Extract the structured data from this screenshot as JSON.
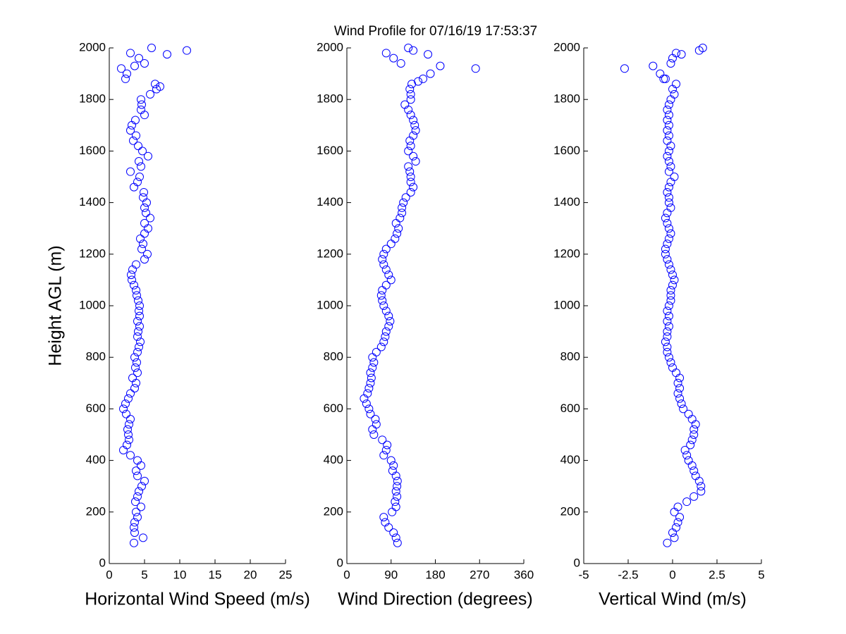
{
  "chart_data": [
    {
      "type": "scatter",
      "title": "Wind Profile for  07/16/19 17:53:37",
      "xlabel": "Horizontal Wind Speed (m/s)",
      "ylabel": "Height AGL (m)",
      "color": "#0000ff",
      "xlim": [
        0,
        25
      ],
      "xticks": [
        0,
        5,
        10,
        15,
        20,
        25
      ],
      "ylim": [
        0,
        2000
      ],
      "yticks": [
        0,
        200,
        400,
        600,
        800,
        1000,
        1200,
        1400,
        1600,
        1800,
        2000
      ],
      "x": [
        3.5,
        4.8,
        3.6,
        3.5,
        3.6,
        4.0,
        3.8,
        4.5,
        3.7,
        4.0,
        4.2,
        4.6,
        5.0,
        4.0,
        3.8,
        4.5,
        4.0,
        3.0,
        2.0,
        2.5,
        2.8,
        2.7,
        2.6,
        2.8,
        3.0,
        2.4,
        2.0,
        2.3,
        2.7,
        3.0,
        3.6,
        3.8,
        3.3,
        4.0,
        3.7,
        3.9,
        3.6,
        4.0,
        4.2,
        4.4,
        4.0,
        4.1,
        4.3,
        4.0,
        4.3,
        4.2,
        4.3,
        4.1,
        3.9,
        3.8,
        3.5,
        3.2,
        3.1,
        3.3,
        3.8,
        5.0,
        5.4,
        4.6,
        4.8,
        4.4,
        5.0,
        5.5,
        5.0,
        5.8,
        5.2,
        5.0,
        5.3,
        4.8,
        4.9,
        3.5,
        4.0,
        4.3,
        3.0,
        4.5,
        4.2,
        5.5,
        4.7,
        4.1,
        3.4,
        3.8,
        3.0,
        3.2,
        3.7,
        5.0,
        4.5,
        4.6,
        4.5,
        5.8,
        6.7,
        6.5,
        2.3,
        2.5,
        1.7,
        5.0,
        4.2,
        3.0,
        6.0,
        11.0,
        8.2,
        7.2,
        3.6
      ],
      "y": [
        80,
        100,
        120,
        140,
        160,
        180,
        200,
        220,
        240,
        260,
        280,
        300,
        320,
        340,
        360,
        380,
        400,
        420,
        440,
        460,
        480,
        500,
        520,
        540,
        560,
        580,
        600,
        620,
        640,
        660,
        680,
        700,
        720,
        740,
        760,
        780,
        800,
        820,
        840,
        860,
        880,
        900,
        920,
        940,
        960,
        980,
        1000,
        1020,
        1040,
        1060,
        1080,
        1100,
        1120,
        1140,
        1160,
        1180,
        1200,
        1220,
        1240,
        1260,
        1280,
        1300,
        1320,
        1340,
        1360,
        1380,
        1400,
        1420,
        1440,
        1460,
        1480,
        1500,
        1520,
        1540,
        1560,
        1580,
        1600,
        1620,
        1640,
        1660,
        1680,
        1700,
        1720,
        1740,
        1760,
        1780,
        1800,
        1820,
        1840,
        1860,
        1880,
        1900,
        1920,
        1940,
        1960,
        1980,
        2000,
        1990,
        1975,
        1850,
        1930
      ]
    },
    {
      "type": "scatter",
      "xlabel": "Wind Direction (degrees)",
      "color": "#0000ff",
      "xlim": [
        0,
        360
      ],
      "xticks": [
        0,
        90,
        180,
        270,
        360
      ],
      "ylim": [
        0,
        2000
      ],
      "yticks": [
        0,
        200,
        400,
        600,
        800,
        1000,
        1200,
        1400,
        1600,
        1800,
        2000
      ],
      "x": [
        103,
        100,
        95,
        85,
        78,
        75,
        92,
        100,
        98,
        102,
        100,
        102,
        103,
        100,
        93,
        95,
        90,
        75,
        80,
        82,
        72,
        55,
        52,
        60,
        58,
        48,
        45,
        40,
        35,
        42,
        45,
        48,
        50,
        48,
        52,
        55,
        52,
        60,
        70,
        75,
        78,
        80,
        85,
        88,
        85,
        80,
        75,
        72,
        70,
        72,
        80,
        90,
        85,
        80,
        75,
        72,
        75,
        80,
        90,
        98,
        102,
        105,
        100,
        108,
        112,
        112,
        115,
        120,
        130,
        135,
        130,
        130,
        128,
        125,
        140,
        135,
        125,
        130,
        128,
        135,
        140,
        138,
        135,
        130,
        125,
        118,
        130,
        130,
        128,
        132,
        155,
        170,
        262,
        110,
        95,
        80,
        125,
        165,
        135,
        190,
        145
      ],
      "y": [
        80,
        100,
        120,
        140,
        160,
        180,
        200,
        220,
        240,
        260,
        280,
        300,
        320,
        340,
        360,
        380,
        400,
        420,
        440,
        460,
        480,
        500,
        520,
        540,
        560,
        580,
        600,
        620,
        640,
        660,
        680,
        700,
        720,
        740,
        760,
        780,
        800,
        820,
        840,
        860,
        880,
        900,
        920,
        940,
        960,
        980,
        1000,
        1020,
        1040,
        1060,
        1080,
        1100,
        1120,
        1140,
        1160,
        1180,
        1200,
        1220,
        1240,
        1260,
        1280,
        1300,
        1320,
        1340,
        1360,
        1380,
        1400,
        1420,
        1440,
        1460,
        1480,
        1500,
        1520,
        1540,
        1560,
        1580,
        1600,
        1620,
        1640,
        1660,
        1680,
        1700,
        1720,
        1740,
        1760,
        1780,
        1800,
        1820,
        1840,
        1860,
        1880,
        1900,
        1920,
        1940,
        1960,
        1980,
        2000,
        1975,
        1990,
        1930,
        1870
      ]
    },
    {
      "type": "scatter",
      "xlabel": "Vertical Wind (m/s)",
      "color": "#0000ff",
      "xlim": [
        -5,
        5
      ],
      "xticks": [
        -5,
        -2.5,
        0,
        2.5,
        5
      ],
      "ylim": [
        0,
        2000
      ],
      "yticks": [
        0,
        200,
        400,
        600,
        800,
        1000,
        1200,
        1400,
        1600,
        1800,
        2000
      ],
      "x": [
        -0.3,
        0.1,
        0,
        0.2,
        0.3,
        0.4,
        0.1,
        0.3,
        0.8,
        1.2,
        1.6,
        1.6,
        1.5,
        1.3,
        1.2,
        1.1,
        0.9,
        0.8,
        0.7,
        1.0,
        1.1,
        1.2,
        1.2,
        1.3,
        1.1,
        0.9,
        0.6,
        0.5,
        0.4,
        0.3,
        0.4,
        0.3,
        0.4,
        0.2,
        0,
        -0.1,
        -0.2,
        -0.3,
        -0.3,
        -0.4,
        -0.3,
        -0.3,
        -0.2,
        -0.3,
        -0.2,
        -0.3,
        -0.2,
        -0.1,
        -0.1,
        -0.1,
        0,
        0.1,
        0,
        -0.1,
        -0.2,
        -0.3,
        -0.4,
        -0.4,
        -0.3,
        -0.2,
        -0.1,
        -0.2,
        -0.3,
        -0.4,
        -0.3,
        -0.1,
        -0.2,
        -0.2,
        -0.3,
        -0.2,
        -0.1,
        0.1,
        -0.2,
        -0.1,
        -0.2,
        -0.3,
        -0.2,
        -0.1,
        -0.3,
        -0.2,
        -0.3,
        -0.2,
        -0.3,
        -0.2,
        -0.3,
        -0.2,
        -0.1,
        0.1,
        0,
        0.2,
        -0.4,
        -0.7,
        -2.7,
        -0.1,
        0,
        0.2,
        1.7,
        1.5,
        0.5,
        -1.1,
        -0.5
      ],
      "y": [
        80,
        100,
        120,
        140,
        160,
        180,
        200,
        220,
        240,
        260,
        280,
        300,
        320,
        340,
        360,
        380,
        400,
        420,
        440,
        460,
        480,
        500,
        520,
        540,
        560,
        580,
        600,
        620,
        640,
        660,
        680,
        700,
        720,
        740,
        760,
        780,
        800,
        820,
        840,
        860,
        880,
        900,
        920,
        940,
        960,
        980,
        1000,
        1020,
        1040,
        1060,
        1080,
        1100,
        1120,
        1140,
        1160,
        1180,
        1200,
        1220,
        1240,
        1260,
        1280,
        1300,
        1320,
        1340,
        1360,
        1380,
        1400,
        1420,
        1440,
        1460,
        1480,
        1500,
        1520,
        1540,
        1560,
        1580,
        1600,
        1620,
        1640,
        1660,
        1680,
        1700,
        1720,
        1740,
        1760,
        1780,
        1800,
        1820,
        1840,
        1860,
        1880,
        1900,
        1920,
        1940,
        1960,
        1980,
        2000,
        1990,
        1975,
        1930,
        1880
      ]
    }
  ]
}
